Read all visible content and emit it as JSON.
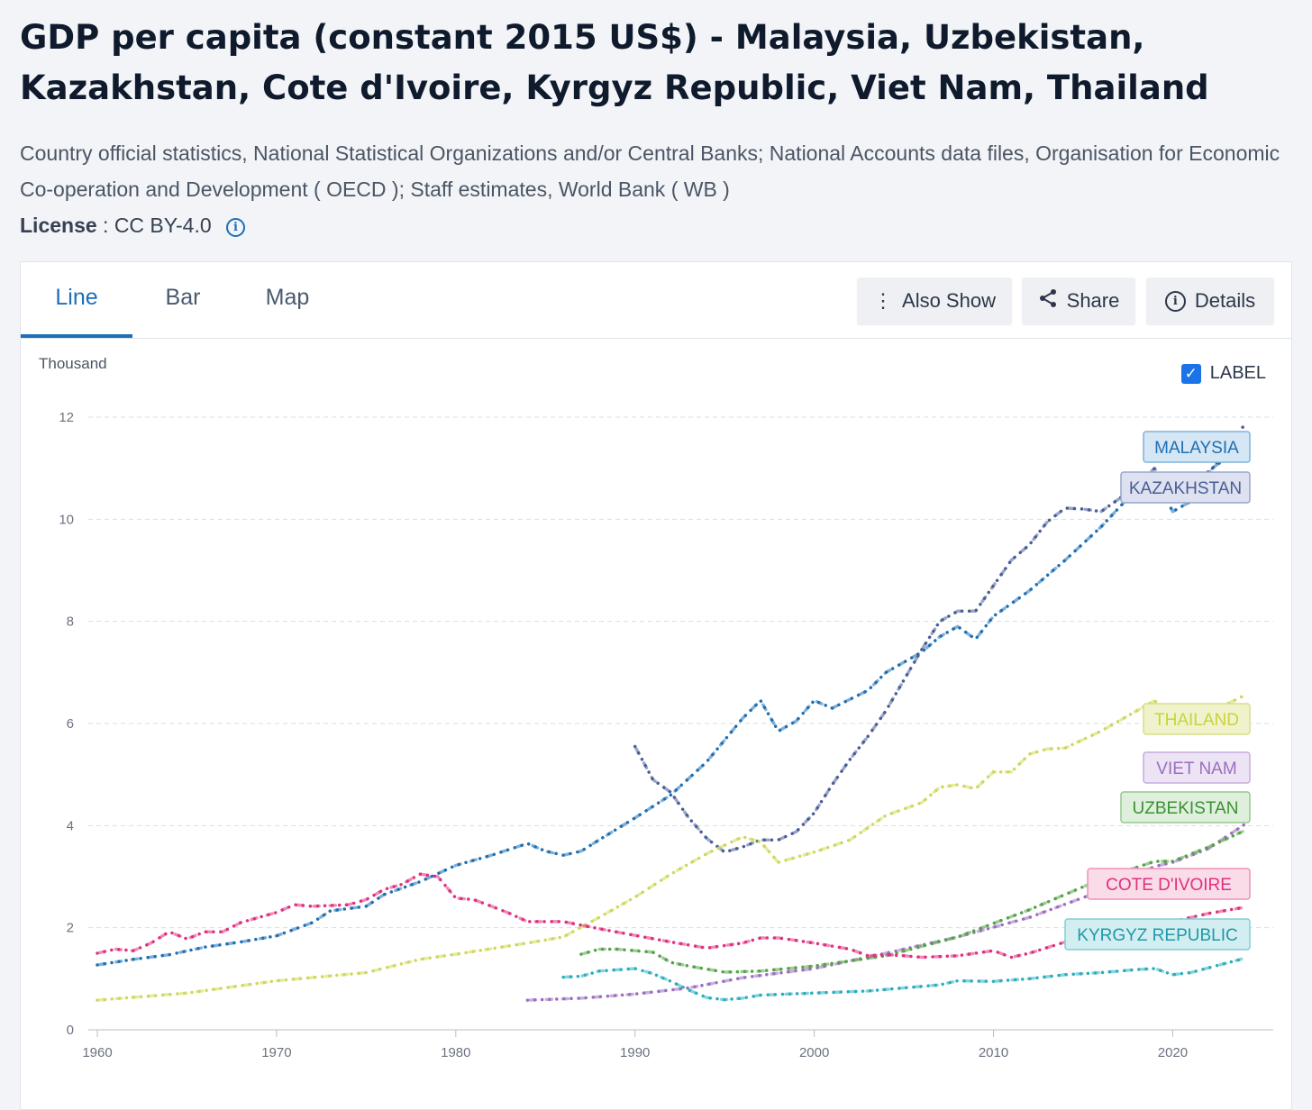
{
  "page": {
    "title": "GDP per capita (constant 2015 US$) - Malaysia, Uzbekistan, Kazakhstan, Cote d'Ivoire, Kyrgyz Republic, Viet Nam, Thailand",
    "source": "Country official statistics, National Statistical Organizations and/or Central Banks; National Accounts data files, Organisation for Economic Co-operation and Development ( OECD ); Staff estimates, World Bank ( WB )",
    "license_label": "License",
    "license_value": ": CC BY-4.0"
  },
  "tabs": [
    {
      "label": "Line",
      "active": true
    },
    {
      "label": "Bar",
      "active": false
    },
    {
      "label": "Map",
      "active": false
    }
  ],
  "actions": {
    "also_show": "Also Show",
    "share": "Share",
    "details": "Details"
  },
  "label_toggle": {
    "label": "LABEL",
    "checked": true
  },
  "chart_data": {
    "type": "line",
    "title": "",
    "xlabel": "",
    "ylabel": "Thousand",
    "xlim": [
      1960,
      2024
    ],
    "ylim": [
      0,
      12
    ],
    "x_ticks": [
      1960,
      1970,
      1980,
      1990,
      2000,
      2010,
      2020
    ],
    "y_ticks": [
      0,
      2,
      4,
      6,
      8,
      10,
      12
    ],
    "grid": true,
    "series": [
      {
        "name": "MALAYSIA",
        "color": "#1f6fb2",
        "points": [
          [
            1960,
            1.27
          ],
          [
            1962,
            1.38
          ],
          [
            1964,
            1.47
          ],
          [
            1966,
            1.62
          ],
          [
            1968,
            1.72
          ],
          [
            1970,
            1.84
          ],
          [
            1972,
            2.1
          ],
          [
            1973,
            2.33
          ],
          [
            1975,
            2.42
          ],
          [
            1976,
            2.65
          ],
          [
            1978,
            2.9
          ],
          [
            1980,
            3.22
          ],
          [
            1982,
            3.42
          ],
          [
            1984,
            3.65
          ],
          [
            1985,
            3.5
          ],
          [
            1986,
            3.42
          ],
          [
            1987,
            3.5
          ],
          [
            1988,
            3.72
          ],
          [
            1990,
            4.15
          ],
          [
            1992,
            4.6
          ],
          [
            1994,
            5.25
          ],
          [
            1996,
            6.1
          ],
          [
            1997,
            6.45
          ],
          [
            1998,
            5.85
          ],
          [
            1999,
            6.05
          ],
          [
            2000,
            6.45
          ],
          [
            2001,
            6.3
          ],
          [
            2003,
            6.65
          ],
          [
            2004,
            7.0
          ],
          [
            2006,
            7.4
          ],
          [
            2007,
            7.7
          ],
          [
            2008,
            7.9
          ],
          [
            2009,
            7.65
          ],
          [
            2010,
            8.1
          ],
          [
            2012,
            8.6
          ],
          [
            2014,
            9.2
          ],
          [
            2016,
            9.85
          ],
          [
            2018,
            10.6
          ],
          [
            2019,
            10.85
          ],
          [
            2020,
            10.15
          ],
          [
            2021,
            10.35
          ],
          [
            2022,
            10.95
          ],
          [
            2024,
            11.45
          ]
        ]
      },
      {
        "name": "KAZAKHSTAN",
        "color": "#4a5d96",
        "points": [
          [
            1990,
            5.55
          ],
          [
            1991,
            4.9
          ],
          [
            1992,
            4.65
          ],
          [
            1993,
            4.15
          ],
          [
            1994,
            3.75
          ],
          [
            1995,
            3.48
          ],
          [
            1996,
            3.58
          ],
          [
            1997,
            3.72
          ],
          [
            1998,
            3.72
          ],
          [
            1999,
            3.88
          ],
          [
            2000,
            4.25
          ],
          [
            2001,
            4.8
          ],
          [
            2002,
            5.3
          ],
          [
            2003,
            5.75
          ],
          [
            2004,
            6.25
          ],
          [
            2005,
            6.85
          ],
          [
            2006,
            7.45
          ],
          [
            2007,
            8.0
          ],
          [
            2008,
            8.2
          ],
          [
            2009,
            8.2
          ],
          [
            2010,
            8.7
          ],
          [
            2011,
            9.2
          ],
          [
            2012,
            9.5
          ],
          [
            2013,
            9.95
          ],
          [
            2014,
            10.22
          ],
          [
            2015,
            10.2
          ],
          [
            2016,
            10.15
          ],
          [
            2017,
            10.4
          ],
          [
            2018,
            10.7
          ],
          [
            2019,
            11.0
          ],
          [
            2020,
            10.4
          ],
          [
            2021,
            10.75
          ],
          [
            2022,
            10.9
          ],
          [
            2023,
            11.35
          ],
          [
            2024,
            11.85
          ]
        ]
      },
      {
        "name": "THAILAND",
        "color": "#cfd85a",
        "points": [
          [
            1960,
            0.58
          ],
          [
            1965,
            0.72
          ],
          [
            1970,
            0.96
          ],
          [
            1975,
            1.12
          ],
          [
            1978,
            1.38
          ],
          [
            1980,
            1.48
          ],
          [
            1984,
            1.7
          ],
          [
            1986,
            1.82
          ],
          [
            1988,
            2.2
          ],
          [
            1990,
            2.6
          ],
          [
            1992,
            3.05
          ],
          [
            1994,
            3.45
          ],
          [
            1996,
            3.78
          ],
          [
            1997,
            3.68
          ],
          [
            1998,
            3.28
          ],
          [
            2000,
            3.48
          ],
          [
            2002,
            3.72
          ],
          [
            2004,
            4.2
          ],
          [
            2006,
            4.45
          ],
          [
            2007,
            4.75
          ],
          [
            2008,
            4.8
          ],
          [
            2009,
            4.72
          ],
          [
            2010,
            5.05
          ],
          [
            2011,
            5.05
          ],
          [
            2012,
            5.4
          ],
          [
            2013,
            5.5
          ],
          [
            2014,
            5.52
          ],
          [
            2016,
            5.85
          ],
          [
            2018,
            6.25
          ],
          [
            2019,
            6.45
          ],
          [
            2020,
            6.0
          ],
          [
            2021,
            6.05
          ],
          [
            2022,
            6.2
          ],
          [
            2024,
            6.55
          ]
        ]
      },
      {
        "name": "VIET NAM",
        "color": "#9b6fbf",
        "points": [
          [
            1984,
            0.58
          ],
          [
            1987,
            0.62
          ],
          [
            1990,
            0.7
          ],
          [
            1993,
            0.82
          ],
          [
            1996,
            1.02
          ],
          [
            2000,
            1.2
          ],
          [
            2004,
            1.5
          ],
          [
            2008,
            1.82
          ],
          [
            2012,
            2.2
          ],
          [
            2016,
            2.72
          ],
          [
            2019,
            3.2
          ],
          [
            2020,
            3.28
          ],
          [
            2022,
            3.55
          ],
          [
            2024,
            4.02
          ]
        ]
      },
      {
        "name": "UZBEKISTAN",
        "color": "#55a248",
        "points": [
          [
            1987,
            1.48
          ],
          [
            1988,
            1.58
          ],
          [
            1989,
            1.58
          ],
          [
            1991,
            1.52
          ],
          [
            1992,
            1.32
          ],
          [
            1993,
            1.25
          ],
          [
            1995,
            1.13
          ],
          [
            1997,
            1.15
          ],
          [
            2000,
            1.25
          ],
          [
            2004,
            1.45
          ],
          [
            2008,
            1.82
          ],
          [
            2012,
            2.35
          ],
          [
            2016,
            2.95
          ],
          [
            2019,
            3.3
          ],
          [
            2020,
            3.3
          ],
          [
            2022,
            3.58
          ],
          [
            2024,
            3.9
          ]
        ]
      },
      {
        "name": "COTE D'IVOIRE",
        "color": "#e0307e",
        "points": [
          [
            1960,
            1.5
          ],
          [
            1961,
            1.58
          ],
          [
            1962,
            1.55
          ],
          [
            1963,
            1.7
          ],
          [
            1964,
            1.92
          ],
          [
            1965,
            1.78
          ],
          [
            1966,
            1.92
          ],
          [
            1967,
            1.92
          ],
          [
            1968,
            2.1
          ],
          [
            1970,
            2.3
          ],
          [
            1971,
            2.45
          ],
          [
            1972,
            2.42
          ],
          [
            1974,
            2.45
          ],
          [
            1975,
            2.55
          ],
          [
            1976,
            2.75
          ],
          [
            1977,
            2.85
          ],
          [
            1978,
            3.05
          ],
          [
            1979,
            3.0
          ],
          [
            1980,
            2.58
          ],
          [
            1981,
            2.55
          ],
          [
            1982,
            2.42
          ],
          [
            1983,
            2.28
          ],
          [
            1984,
            2.12
          ],
          [
            1986,
            2.12
          ],
          [
            1988,
            1.98
          ],
          [
            1990,
            1.85
          ],
          [
            1992,
            1.72
          ],
          [
            1994,
            1.6
          ],
          [
            1996,
            1.7
          ],
          [
            1997,
            1.8
          ],
          [
            1998,
            1.8
          ],
          [
            1999,
            1.75
          ],
          [
            2000,
            1.7
          ],
          [
            2002,
            1.58
          ],
          [
            2003,
            1.45
          ],
          [
            2004,
            1.47
          ],
          [
            2005,
            1.45
          ],
          [
            2006,
            1.42
          ],
          [
            2008,
            1.45
          ],
          [
            2010,
            1.55
          ],
          [
            2011,
            1.42
          ],
          [
            2012,
            1.5
          ],
          [
            2014,
            1.72
          ],
          [
            2016,
            1.92
          ],
          [
            2018,
            2.05
          ],
          [
            2019,
            2.15
          ],
          [
            2020,
            2.12
          ],
          [
            2022,
            2.28
          ],
          [
            2024,
            2.4
          ]
        ]
      },
      {
        "name": "KYRGYZ REPUBLIC",
        "color": "#2aaebe",
        "points": [
          [
            1986,
            1.03
          ],
          [
            1987,
            1.05
          ],
          [
            1988,
            1.15
          ],
          [
            1990,
            1.2
          ],
          [
            1991,
            1.1
          ],
          [
            1992,
            0.95
          ],
          [
            1993,
            0.78
          ],
          [
            1994,
            0.63
          ],
          [
            1995,
            0.59
          ],
          [
            1996,
            0.62
          ],
          [
            1997,
            0.68
          ],
          [
            2000,
            0.72
          ],
          [
            2003,
            0.76
          ],
          [
            2005,
            0.82
          ],
          [
            2007,
            0.88
          ],
          [
            2008,
            0.96
          ],
          [
            2010,
            0.95
          ],
          [
            2012,
            1.0
          ],
          [
            2014,
            1.08
          ],
          [
            2016,
            1.12
          ],
          [
            2018,
            1.18
          ],
          [
            2019,
            1.2
          ],
          [
            2020,
            1.08
          ],
          [
            2021,
            1.12
          ],
          [
            2024,
            1.4
          ]
        ]
      }
    ],
    "legend_labels": [
      {
        "name": "MALAYSIA",
        "color": "#1f6fb2",
        "bg": "#d5e6f4",
        "border": "#7fb3dc"
      },
      {
        "name": "KAZAKHSTAN",
        "color": "#4a5d96",
        "bg": "#dde1f0",
        "border": "#9aa5cc"
      },
      {
        "name": "THAILAND",
        "color": "#c9d33d",
        "bg": "#f0f2cc",
        "border": "#d8de87"
      },
      {
        "name": "VIET NAM",
        "color": "#9b6fbf",
        "bg": "#ece3f4",
        "border": "#c5acdc"
      },
      {
        "name": "UZBEKISTAN",
        "color": "#3d8f34",
        "bg": "#def0db",
        "border": "#93c98b"
      },
      {
        "name": "COTE D'IVOIRE",
        "color": "#e0307e",
        "bg": "#fadbe8",
        "border": "#ee92bb"
      },
      {
        "name": "KYRGYZ REPUBLIC",
        "color": "#1f99a8",
        "bg": "#d2eef1",
        "border": "#82cdd6"
      }
    ]
  }
}
